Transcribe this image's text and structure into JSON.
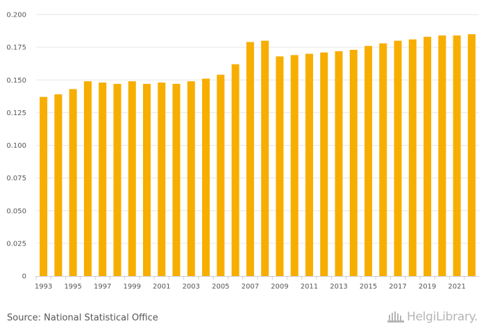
{
  "chart_data": {
    "type": "bar",
    "categories": [
      "1993",
      "1994",
      "1995",
      "1996",
      "1997",
      "1998",
      "1999",
      "2000",
      "2001",
      "2002",
      "2003",
      "2004",
      "2005",
      "2006",
      "2007",
      "2008",
      "2009",
      "2010",
      "2011",
      "2012",
      "2013",
      "2014",
      "2015",
      "2016",
      "2017",
      "2018",
      "2019",
      "2020",
      "2021",
      "2022"
    ],
    "values": [
      0.137,
      0.139,
      0.143,
      0.149,
      0.148,
      0.147,
      0.149,
      0.147,
      0.148,
      0.147,
      0.149,
      0.151,
      0.154,
      0.162,
      0.179,
      0.18,
      0.168,
      0.169,
      0.17,
      0.171,
      0.172,
      0.173,
      0.176,
      0.178,
      0.18,
      0.181,
      0.183,
      0.184,
      0.184,
      0.185
    ],
    "x_tick_labels": [
      "1993",
      "1995",
      "1997",
      "1999",
      "2001",
      "2003",
      "2005",
      "2007",
      "2009",
      "2011",
      "2013",
      "2015",
      "2017",
      "2019",
      "2021"
    ],
    "y_ticks": [
      "0",
      "0.025",
      "0.050",
      "0.075",
      "0.100",
      "0.125",
      "0.150",
      "0.175",
      "0.200"
    ],
    "ylim": [
      0,
      0.2
    ],
    "bar_color": "#f7ae00",
    "grid": true,
    "title": "",
    "xlabel": "",
    "ylabel": ""
  },
  "footer": {
    "source": "Source: National Statistical Office",
    "logo_text": "HelgiLibrary."
  }
}
